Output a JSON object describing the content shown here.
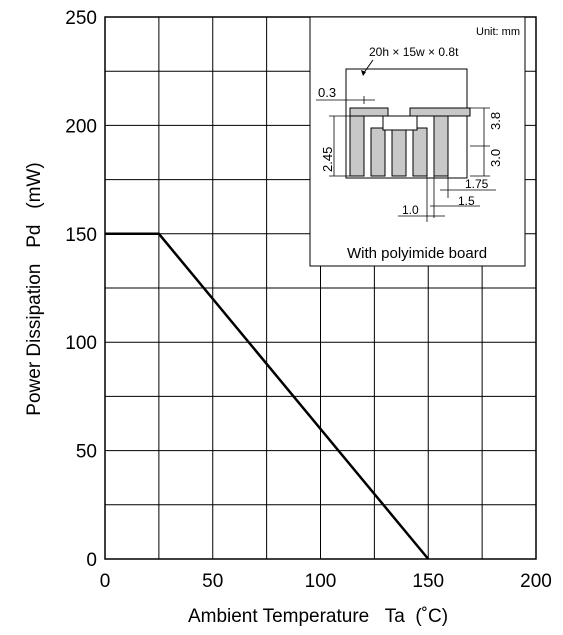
{
  "chart_data": {
    "type": "line",
    "xlabel": "Ambient Temperature   Ta  (˚C)",
    "ylabel": "Power Dissipation   Pd   (mW)",
    "xlim": [
      0,
      200
    ],
    "ylim": [
      0,
      250
    ],
    "xticks": [
      0,
      50,
      100,
      150,
      200
    ],
    "yticks": [
      0,
      50,
      100,
      150,
      200,
      250
    ],
    "xtick_labels": [
      "0",
      "50",
      "100",
      "150",
      "200"
    ],
    "ytick_labels": [
      "0",
      "50",
      "100",
      "150",
      "200",
      "250"
    ],
    "grid_x_step": 25,
    "grid_y_step": 25,
    "grid": true,
    "series": [
      {
        "x": [
          0,
          25,
          150
        ],
        "y": [
          150,
          150,
          0
        ]
      }
    ]
  },
  "inset": {
    "unit_label": "Unit: mm",
    "board_dims": "20h × 15w × 0.8t",
    "caption": "With polyimide board",
    "dimensions": [
      "0.3",
      "3.8",
      "3.0",
      "2.45",
      "1.75",
      "1.5",
      "1.0"
    ]
  }
}
